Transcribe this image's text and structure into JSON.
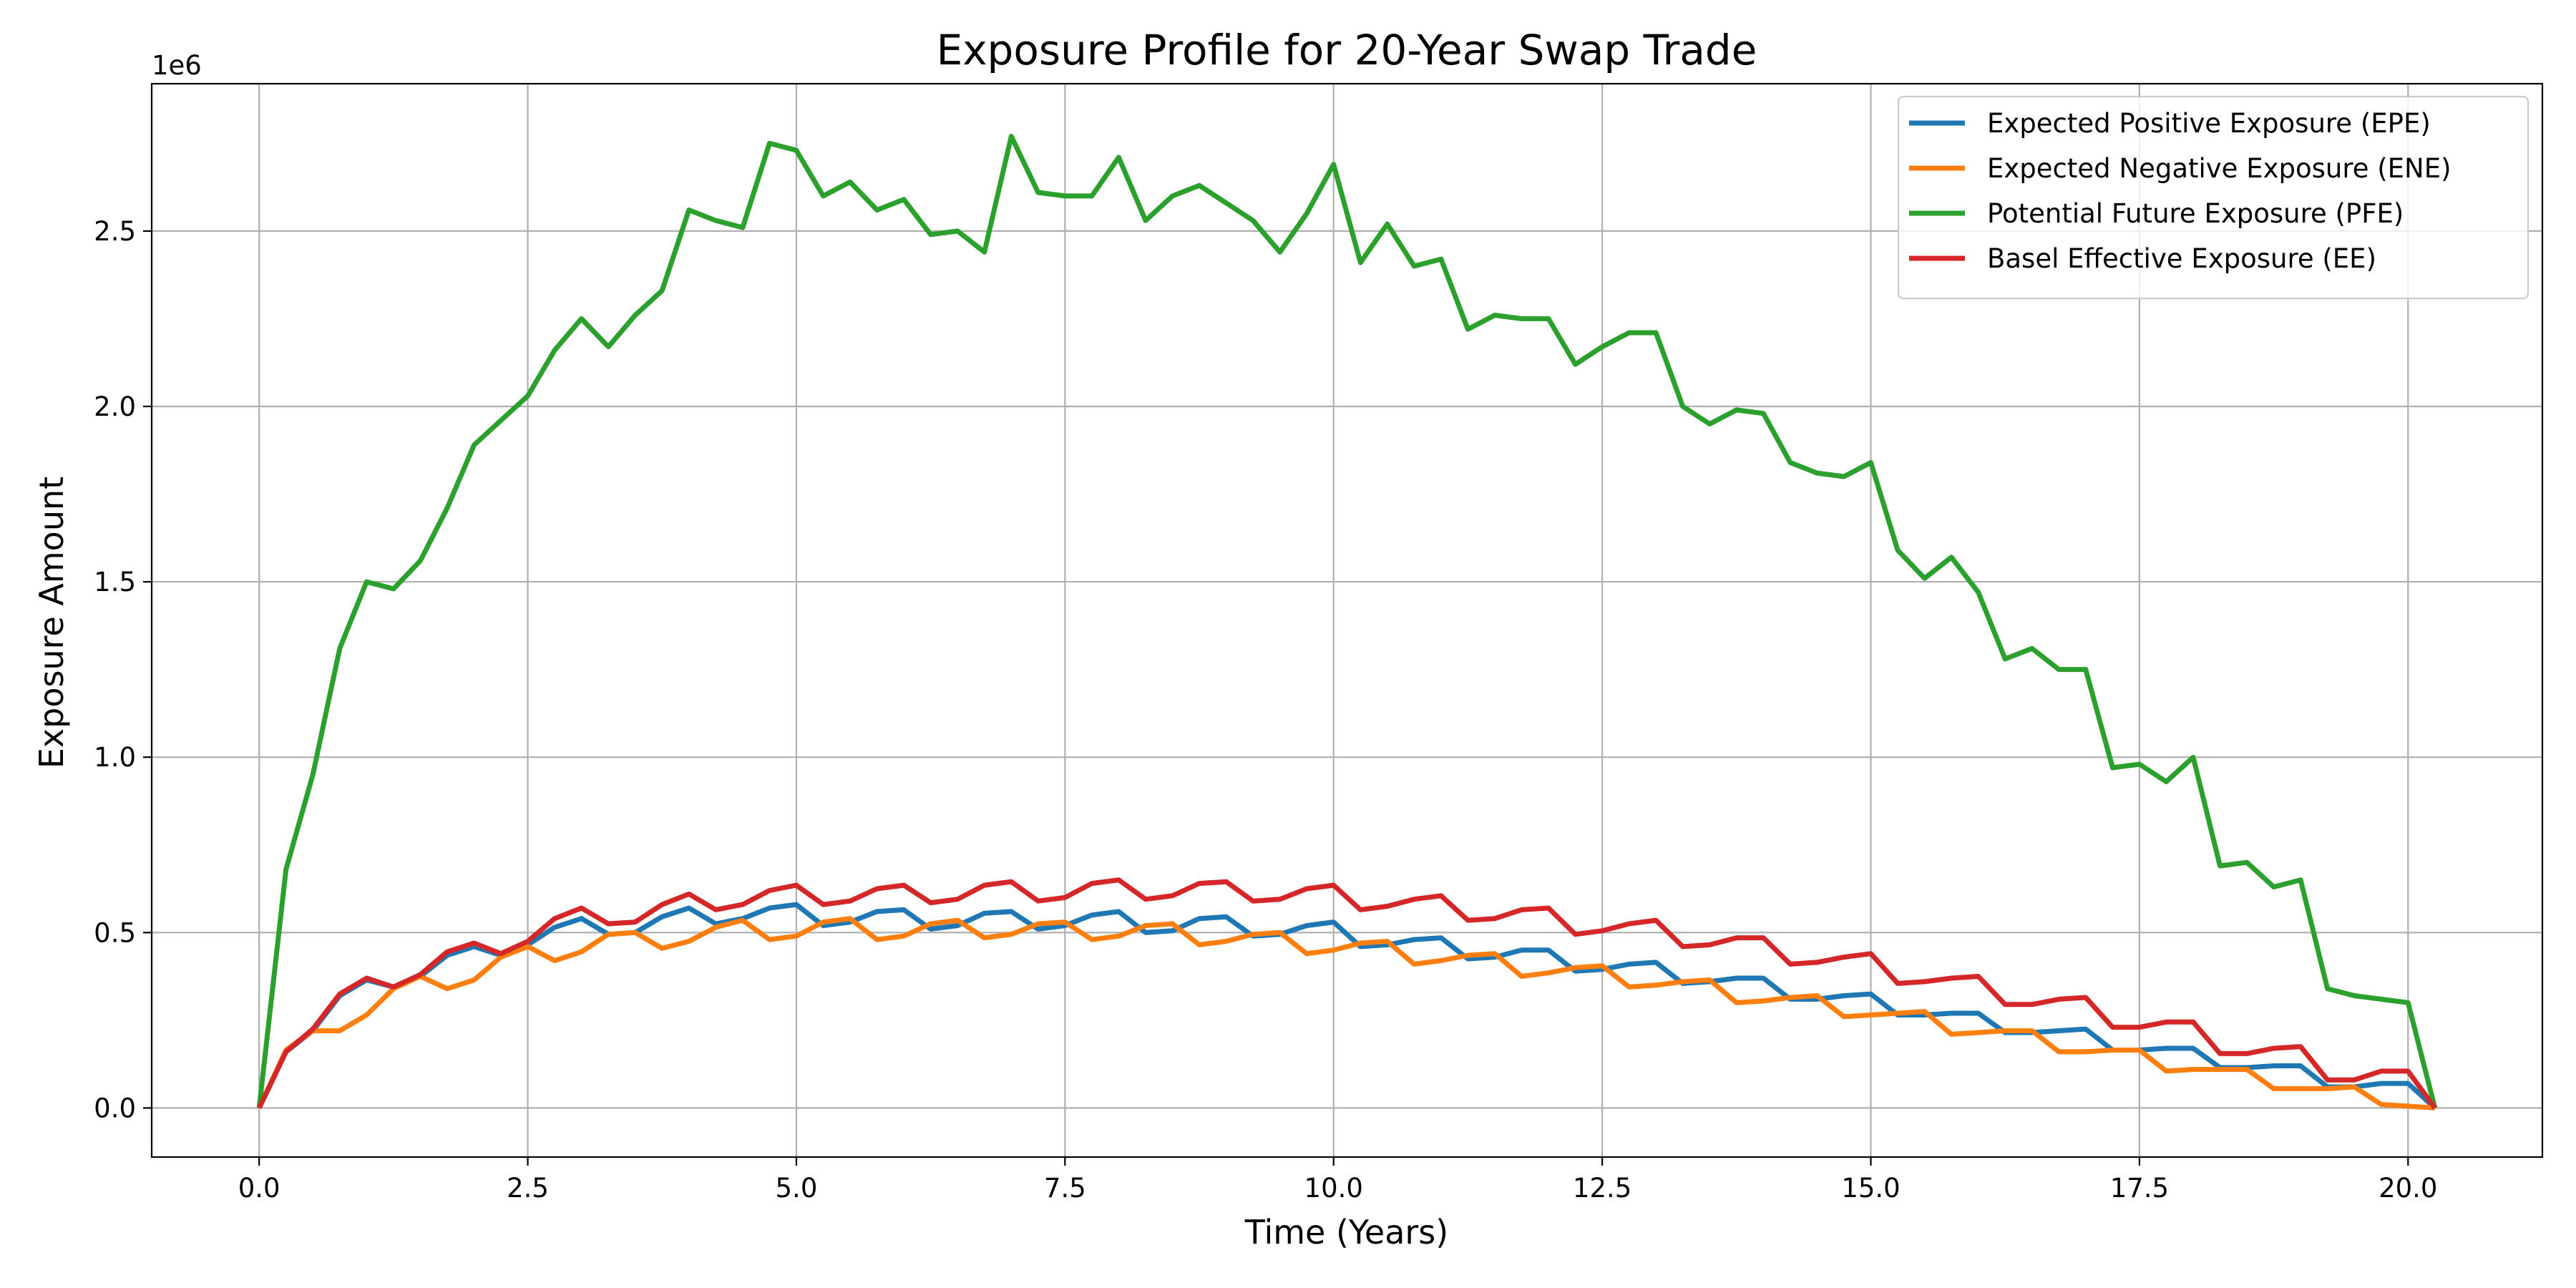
{
  "chart_data": {
    "type": "line",
    "title": "Exposure Profile for 20-Year Swap Trade",
    "xlabel": "Time (Years)",
    "ylabel": "Exposure Amount",
    "y_offset_label": "1e6",
    "xlim": [
      -1.0,
      21.25
    ],
    "ylim": [
      -0.14,
      2.92
    ],
    "y_scale_factor": 1000000,
    "grid": true,
    "legend_position": "top-right",
    "x_ticks": [
      0.0,
      2.5,
      5.0,
      7.5,
      10.0,
      12.5,
      15.0,
      17.5,
      20.0
    ],
    "x_tick_labels": [
      "0.0",
      "2.5",
      "5.0",
      "7.5",
      "10.0",
      "12.5",
      "15.0",
      "17.5",
      "20.0"
    ],
    "y_ticks": [
      0.0,
      0.5,
      1.0,
      1.5,
      2.0,
      2.5
    ],
    "y_tick_labels": [
      "0.0",
      "0.5",
      "1.0",
      "1.5",
      "2.0",
      "2.5"
    ],
    "x": [
      0,
      0.25,
      0.5,
      0.75,
      1,
      1.25,
      1.5,
      1.75,
      2,
      2.25,
      2.5,
      2.75,
      3,
      3.25,
      3.5,
      3.75,
      4,
      4.25,
      4.5,
      4.75,
      5,
      5.25,
      5.5,
      5.75,
      6,
      6.25,
      6.5,
      6.75,
      7,
      7.25,
      7.5,
      7.75,
      8,
      8.25,
      8.5,
      8.75,
      9,
      9.25,
      9.5,
      9.75,
      10,
      10.25,
      10.5,
      10.75,
      11,
      11.25,
      11.5,
      11.75,
      12,
      12.25,
      12.5,
      12.75,
      13,
      13.25,
      13.5,
      13.75,
      14,
      14.25,
      14.5,
      14.75,
      15,
      15.25,
      15.5,
      15.75,
      16,
      16.25,
      16.5,
      16.75,
      17,
      17.25,
      17.5,
      17.75,
      18,
      18.25,
      18.5,
      18.75,
      19,
      19.25,
      19.5,
      19.75,
      20,
      20.25
    ],
    "series": [
      {
        "name": "Expected Positive Exposure (EPE)",
        "color": "#1f77b4",
        "values": [
          0,
          160000,
          220000,
          320000,
          365000,
          345000,
          375000,
          435000,
          460000,
          435000,
          465000,
          515000,
          540000,
          495000,
          500000,
          545000,
          570000,
          525000,
          540000,
          570000,
          580000,
          520000,
          530000,
          560000,
          565000,
          510000,
          520000,
          555000,
          560000,
          510000,
          520000,
          550000,
          560000,
          500000,
          505000,
          540000,
          545000,
          490000,
          495000,
          520000,
          530000,
          460000,
          465000,
          480000,
          485000,
          425000,
          430000,
          450000,
          450000,
          390000,
          395000,
          410000,
          415000,
          355000,
          360000,
          370000,
          370000,
          310000,
          310000,
          320000,
          325000,
          265000,
          265000,
          270000,
          270000,
          215000,
          215000,
          220000,
          225000,
          165000,
          165000,
          170000,
          170000,
          115000,
          115000,
          120000,
          120000,
          60000,
          60000,
          70000,
          70000,
          0
        ]
      },
      {
        "name": "Expected Negative Exposure (ENE)",
        "color": "#ff7f0e",
        "values": [
          0,
          165000,
          220000,
          220000,
          265000,
          340000,
          375000,
          340000,
          365000,
          430000,
          460000,
          420000,
          445000,
          495000,
          500000,
          455000,
          475000,
          515000,
          535000,
          480000,
          490000,
          530000,
          540000,
          480000,
          490000,
          525000,
          535000,
          485000,
          495000,
          525000,
          530000,
          480000,
          490000,
          520000,
          525000,
          465000,
          475000,
          495000,
          500000,
          440000,
          450000,
          470000,
          475000,
          410000,
          420000,
          435000,
          440000,
          375000,
          385000,
          400000,
          405000,
          345000,
          350000,
          360000,
          365000,
          300000,
          305000,
          315000,
          320000,
          260000,
          265000,
          270000,
          275000,
          210000,
          215000,
          220000,
          220000,
          160000,
          160000,
          165000,
          165000,
          105000,
          110000,
          110000,
          110000,
          55000,
          55000,
          55000,
          60000,
          10000,
          5000,
          0
        ]
      },
      {
        "name": "Potential Future Exposure (PFE)",
        "color": "#2ca02c",
        "values": [
          0,
          680000,
          950000,
          1310000,
          1500000,
          1480000,
          1560000,
          1710000,
          1890000,
          1960000,
          2030000,
          2160000,
          2250000,
          2170000,
          2260000,
          2330000,
          2560000,
          2530000,
          2510000,
          2750000,
          2730000,
          2600000,
          2640000,
          2560000,
          2590000,
          2490000,
          2500000,
          2440000,
          2770000,
          2610000,
          2600000,
          2600000,
          2710000,
          2530000,
          2600000,
          2630000,
          2580000,
          2530000,
          2440000,
          2550000,
          2690000,
          2410000,
          2520000,
          2400000,
          2420000,
          2220000,
          2260000,
          2250000,
          2250000,
          2120000,
          2170000,
          2210000,
          2210000,
          2000000,
          1950000,
          1990000,
          1980000,
          1840000,
          1810000,
          1800000,
          1840000,
          1590000,
          1510000,
          1570000,
          1470000,
          1280000,
          1310000,
          1250000,
          1250000,
          970000,
          980000,
          930000,
          1000000,
          690000,
          700000,
          630000,
          650000,
          340000,
          320000,
          310000,
          300000,
          0
        ]
      },
      {
        "name": "Basel Effective Exposure (EE)",
        "color": "#d62728",
        "values": [
          0,
          160000,
          225000,
          325000,
          370000,
          345000,
          380000,
          445000,
          470000,
          440000,
          475000,
          540000,
          570000,
          525000,
          530000,
          580000,
          610000,
          565000,
          580000,
          620000,
          635000,
          580000,
          590000,
          625000,
          635000,
          585000,
          595000,
          635000,
          645000,
          590000,
          600000,
          640000,
          650000,
          595000,
          605000,
          640000,
          645000,
          590000,
          595000,
          625000,
          635000,
          565000,
          575000,
          595000,
          605000,
          535000,
          540000,
          565000,
          570000,
          495000,
          505000,
          525000,
          535000,
          460000,
          465000,
          485000,
          485000,
          410000,
          415000,
          430000,
          440000,
          355000,
          360000,
          370000,
          375000,
          295000,
          295000,
          310000,
          315000,
          230000,
          230000,
          245000,
          245000,
          155000,
          155000,
          170000,
          175000,
          80000,
          80000,
          105000,
          105000,
          0
        ]
      }
    ]
  }
}
